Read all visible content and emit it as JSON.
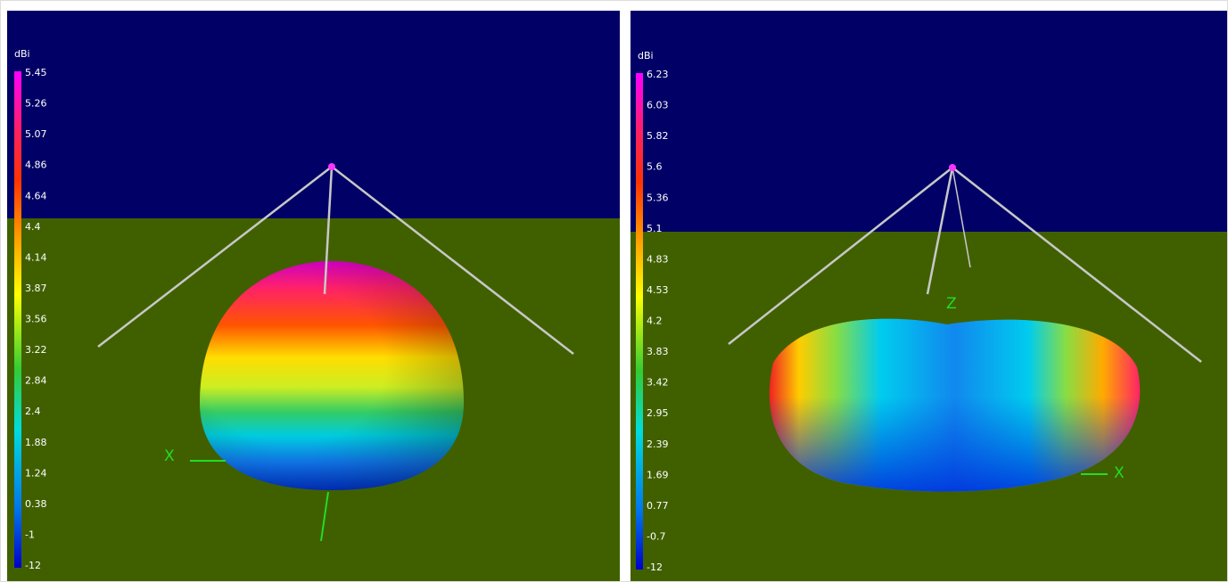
{
  "panels": [
    {
      "unit": "dBi",
      "scale": [
        5.45,
        5.26,
        5.07,
        4.86,
        4.64,
        4.4,
        4.14,
        3.87,
        3.56,
        3.22,
        2.84,
        2.4,
        1.88,
        1.24,
        0.38,
        -1,
        -12
      ],
      "axis_labels": [
        "X"
      ]
    },
    {
      "unit": "dBi",
      "scale": [
        6.23,
        6.03,
        5.82,
        5.6,
        5.36,
        5.1,
        4.83,
        4.53,
        4.2,
        3.83,
        3.42,
        2.95,
        2.39,
        1.69,
        0.77,
        -0.7,
        -12
      ],
      "axis_labels": [
        "Z",
        "X"
      ]
    }
  ]
}
